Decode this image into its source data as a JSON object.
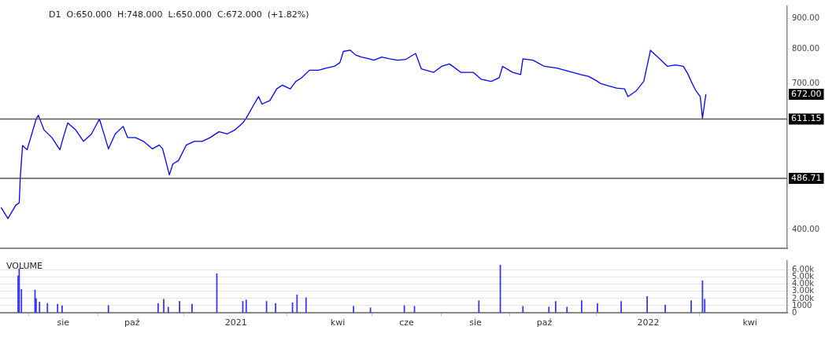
{
  "chart_data": [
    {
      "type": "line",
      "title": "D1  O:650.000  H:748.000  L:650.000  C:672.000  (+1.82%)",
      "xlim": [
        "2020-06-06",
        "2022-05-04"
      ],
      "ylim": [
        372,
        942
      ],
      "log": true,
      "tick_labels": "y",
      "marker": "none",
      "yticks": [
        {
          "value": 400,
          "label": "400.00"
        },
        {
          "value": 700,
          "label": "700.00"
        },
        {
          "value": 800,
          "label": "800.00"
        },
        {
          "value": 900,
          "label": "900.00"
        }
      ],
      "ref_lines": [
        {
          "axis": "y",
          "value": 611.15,
          "label": "611.15",
          "color": "#555555"
        },
        {
          "axis": "y",
          "value": 486.71,
          "label": "486.71",
          "color": "#555555"
        }
      ],
      "annotations": [
        "672.00"
      ],
      "series": [
        {
          "color": "#0000ff",
          "x": [
            "2020-06-07",
            "2020-06-13",
            "2020-06-20",
            "2020-06-23",
            "2020-06-24",
            "2020-06-26",
            "2020-06-30",
            "2020-07-08",
            "2020-07-10",
            "2020-07-15",
            "2020-07-22",
            "2020-07-29",
            "2020-08-01",
            "2020-08-05",
            "2020-08-12",
            "2020-08-19",
            "2020-08-26",
            "2020-09-02",
            "2020-09-05",
            "2020-09-10",
            "2020-09-16",
            "2020-09-23",
            "2020-09-27",
            "2020-10-04",
            "2020-10-11",
            "2020-10-19",
            "2020-10-25",
            "2020-10-28",
            "2020-11-03",
            "2020-11-06",
            "2020-11-11",
            "2020-11-18",
            "2020-11-25",
            "2020-12-02",
            "2020-12-09",
            "2020-12-17",
            "2020-12-24",
            "2020-12-31",
            "2021-01-07",
            "2021-01-10",
            "2021-01-17",
            "2021-01-21",
            "2021-01-24",
            "2021-01-31",
            "2021-02-06",
            "2021-02-11",
            "2021-02-18",
            "2021-02-23",
            "2021-02-28",
            "2021-03-07",
            "2021-03-15",
            "2021-03-22",
            "2021-03-29",
            "2021-04-03",
            "2021-04-06",
            "2021-04-12",
            "2021-04-17",
            "2021-04-22",
            "2021-04-29",
            "2021-05-03",
            "2021-05-10",
            "2021-05-17",
            "2021-05-24",
            "2021-05-31",
            "2021-06-09",
            "2021-06-14",
            "2021-06-25",
            "2021-07-02",
            "2021-07-09",
            "2021-07-19",
            "2021-07-30",
            "2021-08-06",
            "2021-08-15",
            "2021-08-22",
            "2021-08-25",
            "2021-09-03",
            "2021-09-10",
            "2021-09-12",
            "2021-09-21",
            "2021-10-01",
            "2021-10-12",
            "2021-10-26",
            "2021-11-02",
            "2021-11-09",
            "2021-11-16",
            "2021-11-20",
            "2021-11-27",
            "2021-12-04",
            "2021-12-11",
            "2021-12-14",
            "2021-12-21",
            "2021-12-28",
            "2022-01-03",
            "2022-01-04",
            "2022-01-11",
            "2022-01-18",
            "2022-01-25",
            "2022-02-01",
            "2022-02-05",
            "2022-02-08",
            "2022-02-12",
            "2022-02-16",
            "2022-02-18",
            "2022-02-21"
          ],
          "values": [
            435,
            417,
            439,
            443,
            490,
            552,
            543,
            611,
            620,
            586,
            569,
            543,
            569,
            602,
            586,
            561,
            577,
            611,
            586,
            545,
            577,
            594,
            569,
            569,
            561,
            545,
            553,
            545,
            493,
            514,
            521,
            553,
            561,
            561,
            569,
            582,
            577,
            586,
            602,
            613,
            647,
            666,
            647,
            656,
            686,
            696,
            686,
            706,
            716,
            737,
            737,
            743,
            748,
            759,
            792,
            796,
            781,
            775,
            770,
            766,
            775,
            770,
            766,
            768,
            786,
            741,
            731,
            748,
            755,
            731,
            731,
            712,
            706,
            716,
            748,
            731,
            725,
            770,
            766,
            748,
            743,
            731,
            725,
            720,
            708,
            700,
            694,
            688,
            686,
            666,
            680,
            706,
            796,
            792,
            770,
            748,
            752,
            748,
            727,
            706,
            682,
            666,
            613,
            672
          ]
        }
      ]
    },
    {
      "type": "bar",
      "title": "VOLUME",
      "xlim": [
        "2020-06-06",
        "2022-05-04"
      ],
      "ylim": [
        0,
        7300
      ],
      "grid": "y",
      "xticks": [
        {
          "value": "2020-08-01",
          "label": "sie"
        },
        {
          "value": "2020-10-01",
          "label": "paź"
        },
        {
          "value": "2021-01-01",
          "label": "2021"
        },
        {
          "value": "2021-04-01",
          "label": "kwi"
        },
        {
          "value": "2021-06-01",
          "label": "cze"
        },
        {
          "value": "2021-08-01",
          "label": "sie"
        },
        {
          "value": "2021-10-01",
          "label": "paź"
        },
        {
          "value": "2022-01-01",
          "label": "2022"
        },
        {
          "value": "2022-04-01",
          "label": "kwi"
        }
      ],
      "yticks": [
        {
          "value": 0,
          "label": "0"
        },
        {
          "value": 1000,
          "label": "1000"
        },
        {
          "value": 2000,
          "label": "2.00k"
        },
        {
          "value": 3000,
          "label": "3.00k"
        },
        {
          "value": 4000,
          "label": "4.00k"
        },
        {
          "value": 5000,
          "label": "5.00k"
        },
        {
          "value": 6000,
          "label": "6.00k"
        }
      ],
      "series": [
        {
          "color": "#3333ff",
          "x": [
            "2020-06-22",
            "2020-06-23",
            "2020-06-25",
            "2020-07-07",
            "2020-07-08",
            "2020-07-11",
            "2020-07-18",
            "2020-07-27",
            "2020-07-31",
            "2020-09-10",
            "2020-10-24",
            "2020-10-29",
            "2020-11-02",
            "2020-11-12",
            "2020-11-23",
            "2020-12-15",
            "2021-01-07",
            "2021-01-10",
            "2021-01-28",
            "2021-02-05",
            "2021-02-20",
            "2021-02-24",
            "2021-03-04",
            "2021-04-15",
            "2021-04-30",
            "2021-05-30",
            "2021-06-08",
            "2021-08-04",
            "2021-08-23",
            "2021-09-12",
            "2021-10-05",
            "2021-10-11",
            "2021-10-21",
            "2021-11-03",
            "2021-11-17",
            "2021-12-08",
            "2021-12-31",
            "2022-01-16",
            "2022-02-08",
            "2022-02-18",
            "2022-02-20"
          ],
          "values": [
            5200,
            6200,
            3300,
            3200,
            2000,
            1500,
            1300,
            1200,
            1000,
            1000,
            1300,
            1900,
            800,
            1600,
            1200,
            5500,
            1600,
            1800,
            1600,
            1300,
            1400,
            2500,
            2100,
            900,
            700,
            1000,
            900,
            1700,
            6700,
            900,
            800,
            1600,
            800,
            1700,
            1300,
            1600,
            2300,
            1100,
            1700,
            4500,
            1900
          ]
        }
      ]
    }
  ]
}
